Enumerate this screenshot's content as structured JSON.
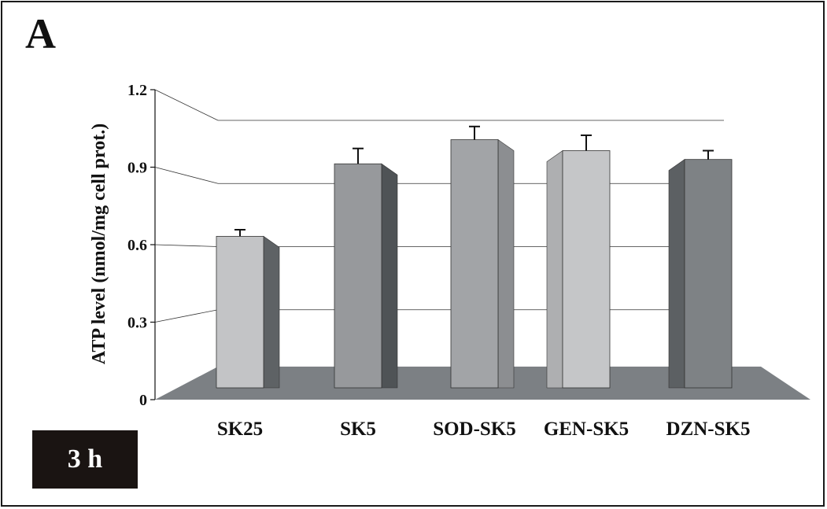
{
  "panel_label": "A",
  "time_badge": "3 h",
  "chart_data": {
    "type": "bar",
    "title": "",
    "xlabel": "",
    "ylabel": "ATP level (nmol/mg cell prot.)",
    "ylim": [
      0,
      1.2
    ],
    "yticks": [
      "0",
      "0.3",
      "0.6",
      "0.9",
      "1.2"
    ],
    "categories": [
      "SK25",
      "SK5",
      "SOD-SK5",
      "GEN-SK5",
      "DZN-SK5"
    ],
    "series": [
      {
        "values": [
          0.69,
          1.02,
          1.13,
          1.08,
          1.04
        ],
        "errors": [
          0.03,
          0.07,
          0.06,
          0.07,
          0.04
        ]
      }
    ],
    "grid": true,
    "legend": "none",
    "style": "3d",
    "colors": {
      "floor": "#7c8084",
      "bar_fronts": [
        "#c3c4c6",
        "#97999c",
        "#a2a4a7",
        "#c5c6c8",
        "#7e8285"
      ],
      "bar_sides": [
        "#5e6265",
        "#4f5356",
        "#8c8e91",
        "#aeafb1",
        "#5c6063"
      ],
      "gridline": "#333333",
      "text": "#111111"
    }
  }
}
